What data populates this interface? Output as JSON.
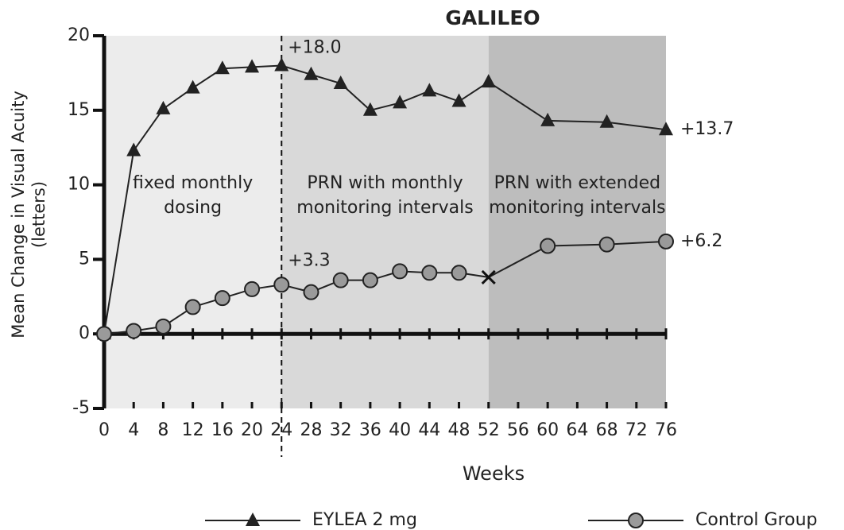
{
  "chart_data": {
    "type": "line",
    "title": "GALILEO",
    "xlabel": "Weeks",
    "ylabel": [
      "Mean Change in Visual Acuity",
      "(letters)"
    ],
    "x": [
      0,
      4,
      8,
      12,
      16,
      20,
      24,
      28,
      32,
      36,
      40,
      44,
      48,
      52,
      60,
      68,
      76
    ],
    "series": [
      {
        "name": "EYLEA 2 mg",
        "color": "#222222",
        "marker": "triangle",
        "values": [
          0,
          12.3,
          15.1,
          16.5,
          17.8,
          17.9,
          18.0,
          17.4,
          16.8,
          15.0,
          15.5,
          16.3,
          15.6,
          16.9,
          14.3,
          14.2,
          13.7
        ]
      },
      {
        "name": "Control Group",
        "color": "#222222",
        "marker": "circle",
        "marker_fill": "#9a9a9a",
        "x_marker_at": 52,
        "values": [
          0,
          0.2,
          0.5,
          1.8,
          2.4,
          3.0,
          3.3,
          2.8,
          3.6,
          3.6,
          4.2,
          4.1,
          4.1,
          3.8,
          5.9,
          6.0,
          6.2
        ]
      }
    ],
    "regions": [
      {
        "start": 0,
        "end": 24,
        "color": "#ececec",
        "label": [
          "fixed monthly",
          "dosing"
        ]
      },
      {
        "start": 24,
        "end": 52,
        "color": "#d9d9d9",
        "label": [
          "PRN with monthly",
          "monitoring intervals"
        ]
      },
      {
        "start": 52,
        "end": 76,
        "color": "#bdbdbd",
        "label": [
          "PRN with extended",
          "monitoring intervals"
        ]
      }
    ],
    "dashed_line_x": 24,
    "annotations": [
      {
        "text": "+18.0",
        "x": 24,
        "y": 18.0,
        "position": "above-right"
      },
      {
        "text": "+13.7",
        "x": 76,
        "y": 13.7,
        "position": "right"
      },
      {
        "text": "+3.3",
        "x": 24,
        "y": 3.3,
        "position": "above-right"
      },
      {
        "text": "+6.2",
        "x": 76,
        "y": 6.2,
        "position": "right"
      }
    ],
    "xlim": [
      0,
      76
    ],
    "xticks": [
      0,
      4,
      8,
      12,
      16,
      20,
      24,
      28,
      32,
      36,
      40,
      44,
      48,
      52,
      56,
      60,
      64,
      68,
      72,
      76
    ],
    "ylim": [
      -5,
      20
    ],
    "yticks": [
      -5,
      0,
      5,
      10,
      15,
      20
    ],
    "legend": "bottom"
  }
}
